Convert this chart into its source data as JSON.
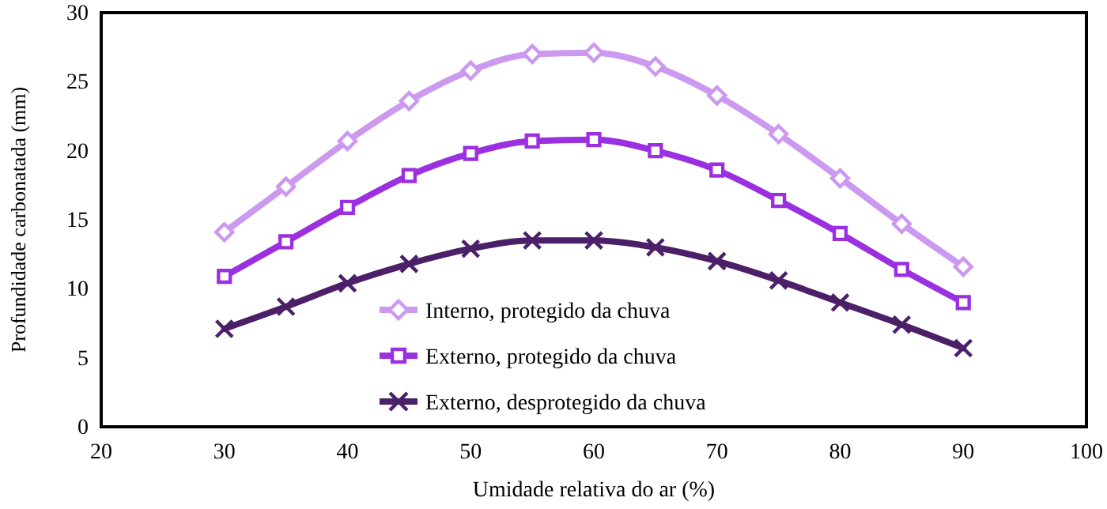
{
  "chart_data": {
    "type": "line",
    "xlabel": "Umidade relativa  do ar (%)",
    "ylabel": "Profundidade  carbonatada  (mm)",
    "x": [
      30,
      35,
      40,
      45,
      50,
      55,
      60,
      65,
      70,
      75,
      80,
      85,
      90
    ],
    "xlim": [
      20,
      100
    ],
    "xticks": [
      20,
      30,
      40,
      50,
      60,
      70,
      80,
      90,
      100
    ],
    "ylim": [
      0,
      30
    ],
    "yticks": [
      0,
      5,
      10,
      15,
      20,
      25,
      30
    ],
    "grid": false,
    "legend": "bottom",
    "line_style": "solid",
    "series": [
      {
        "name": "Interno, protegido da chuva",
        "color": "#cc99f0",
        "marker": "diamond",
        "values": [
          14.1,
          17.4,
          20.7,
          23.6,
          25.8,
          27.0,
          27.1,
          26.1,
          24.0,
          21.2,
          18.0,
          14.7,
          11.6
        ]
      },
      {
        "name": "Externo, protegido da chuva",
        "color": "#9b30e0",
        "marker": "square",
        "values": [
          10.9,
          13.4,
          15.9,
          18.2,
          19.8,
          20.7,
          20.8,
          20.0,
          18.6,
          16.4,
          14.0,
          11.4,
          9.0
        ]
      },
      {
        "name": "Externo, desprotegido da chuva",
        "color": "#4b2068",
        "marker": "cross",
        "values": [
          7.1,
          8.7,
          10.4,
          11.8,
          12.9,
          13.5,
          13.5,
          13.0,
          12.0,
          10.6,
          9.0,
          7.4,
          5.7
        ]
      }
    ]
  }
}
